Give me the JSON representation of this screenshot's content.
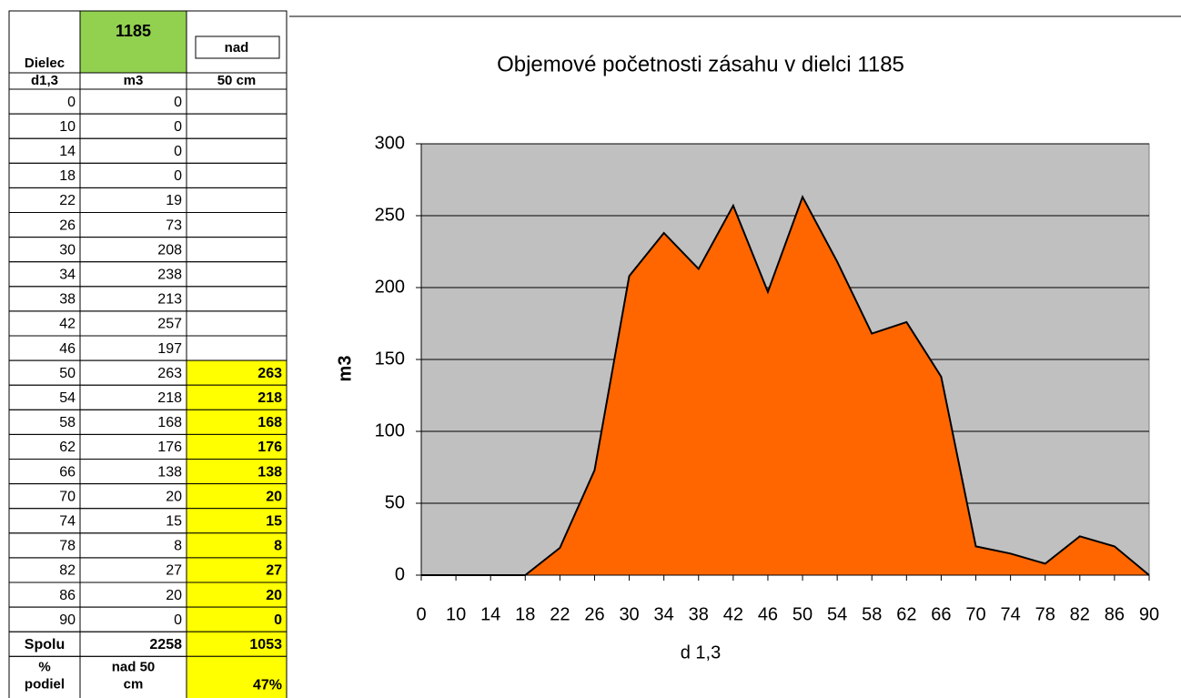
{
  "table": {
    "header": [
      [
        "Dielec",
        "1185",
        "nad"
      ],
      [
        "d1,3",
        "m3",
        "50 cm"
      ]
    ],
    "rows": [
      [
        0,
        0
      ],
      [
        10,
        0
      ],
      [
        14,
        0
      ],
      [
        18,
        0
      ],
      [
        22,
        19
      ],
      [
        26,
        73
      ],
      [
        30,
        208
      ],
      [
        34,
        238
      ],
      [
        38,
        213
      ],
      [
        42,
        257
      ],
      [
        46,
        197
      ],
      [
        50,
        263,
        263
      ],
      [
        54,
        218,
        218
      ],
      [
        58,
        168,
        168
      ],
      [
        62,
        176,
        176
      ],
      [
        66,
        138,
        138
      ],
      [
        70,
        20,
        20
      ],
      [
        74,
        15,
        15
      ],
      [
        78,
        8,
        8
      ],
      [
        82,
        27,
        27
      ],
      [
        86,
        20,
        20
      ],
      [
        90,
        0,
        0
      ]
    ],
    "total": [
      "Spolu",
      2258,
      1053
    ],
    "footer": [
      "% podiel",
      "nad 50 cm",
      "47%"
    ]
  },
  "chart_data": {
    "type": "area",
    "title": "Objemové početnosti zásahu v dielci 1185",
    "xlabel": "d 1,3",
    "ylabel": "m3",
    "categories": [
      "0",
      "10",
      "14",
      "18",
      "22",
      "26",
      "30",
      "34",
      "38",
      "42",
      "46",
      "50",
      "54",
      "58",
      "62",
      "66",
      "70",
      "74",
      "78",
      "82",
      "86",
      "90"
    ],
    "values": [
      0,
      0,
      0,
      0,
      19,
      73,
      208,
      238,
      213,
      257,
      197,
      263,
      218,
      168,
      176,
      138,
      20,
      15,
      8,
      27,
      20,
      0
    ],
    "color": "#ff6600",
    "plot_background": "#c0c0c0",
    "ylim": [
      0,
      300
    ],
    "yticks": [
      0,
      50,
      100,
      150,
      200,
      250,
      300
    ],
    "grid": true
  }
}
